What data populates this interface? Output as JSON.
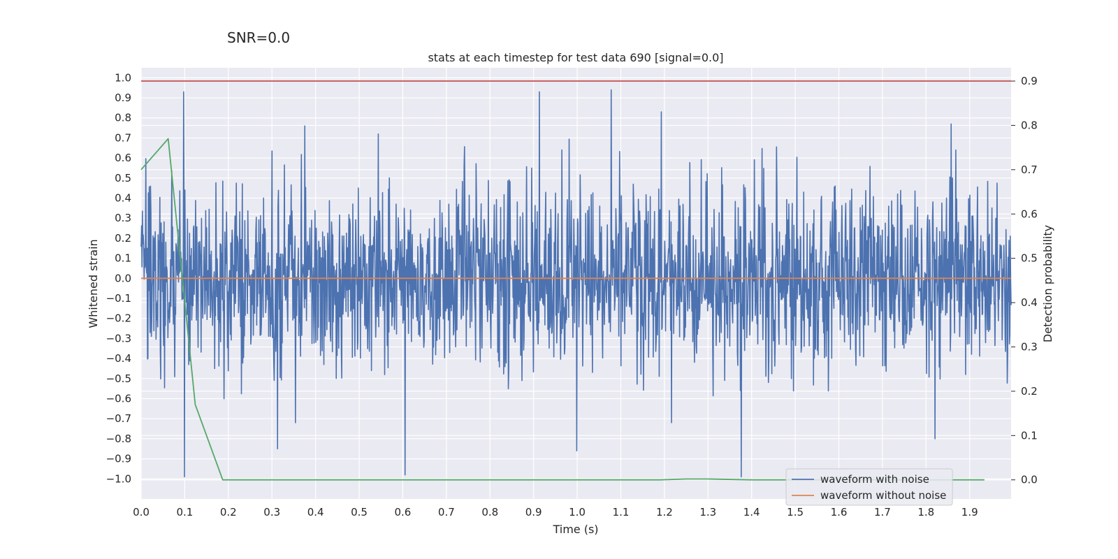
{
  "suptitle": "SNR=0.0",
  "chart_data": {
    "type": "line",
    "title": "stats at each timestep for test data 690 [signal=0.0]",
    "xlabel": "Time (s)",
    "ylabel": "Whitened strain",
    "y2label": "Detection probability",
    "xlim": [
      0.0,
      1.995
    ],
    "ylim": [
      -1.1,
      1.05
    ],
    "y2lim": [
      -0.043,
      0.93
    ],
    "xticks": [
      0.0,
      0.1,
      0.2,
      0.3,
      0.4,
      0.5,
      0.6,
      0.7,
      0.8,
      0.9,
      1.0,
      1.1,
      1.2,
      1.3,
      1.4,
      1.5,
      1.6,
      1.7,
      1.8,
      1.9
    ],
    "xtick_labels": [
      "0.0",
      "0.1",
      "0.2",
      "0.3",
      "0.4",
      "0.5",
      "0.6",
      "0.7",
      "0.8",
      "0.9",
      "1.0",
      "1.1",
      "1.2",
      "1.3",
      "1.4",
      "1.5",
      "1.6",
      "1.7",
      "1.8",
      "1.9"
    ],
    "yticks": [
      1.0,
      0.9,
      0.8,
      0.7,
      0.6,
      0.5,
      0.4,
      0.3,
      0.2,
      0.1,
      0.0,
      -0.1,
      -0.2,
      -0.3,
      -0.4,
      -0.5,
      -0.6,
      -0.7,
      -0.8,
      -0.9,
      -1.0
    ],
    "ytick_labels": [
      "1.0",
      "0.9",
      "0.8",
      "0.7",
      "0.6",
      "0.5",
      "0.4",
      "0.3",
      "0.2",
      "0.1",
      "0.0",
      "−0.1",
      "−0.2",
      "−0.3",
      "−0.4",
      "−0.5",
      "−0.6",
      "−0.7",
      "−0.8",
      "−0.9",
      "−1.0"
    ],
    "y2ticks": [
      0.9,
      0.8,
      0.7,
      0.6,
      0.5,
      0.4,
      0.3,
      0.2,
      0.1,
      0.0
    ],
    "y2tick_labels": [
      "0.9",
      "0.8",
      "0.7",
      "0.6",
      "0.5",
      "0.4",
      "0.3",
      "0.2",
      "0.1",
      "0.0"
    ],
    "grid": true,
    "legend_position": "lower-right",
    "series": [
      {
        "name": "waveform with noise",
        "color": "#4c72b0",
        "axis": "left",
        "generated": "noise",
        "n_points": 2048,
        "x_range": [
          0.0,
          1.995
        ],
        "spikes": [
          {
            "x": 0.097,
            "y": 0.93
          },
          {
            "x": 0.099,
            "y": -0.99
          },
          {
            "x": 0.313,
            "y": -0.85
          },
          {
            "x": 0.375,
            "y": 0.76
          },
          {
            "x": 0.605,
            "y": -0.98
          },
          {
            "x": 0.913,
            "y": 0.93
          },
          {
            "x": 0.999,
            "y": -0.86
          },
          {
            "x": 1.078,
            "y": 0.94
          },
          {
            "x": 1.193,
            "y": 0.83
          },
          {
            "x": 1.376,
            "y": -0.99
          },
          {
            "x": 1.821,
            "y": -0.8
          },
          {
            "x": 1.858,
            "y": 0.77
          }
        ]
      },
      {
        "name": "waveform without noise",
        "color": "#dd8452",
        "axis": "left",
        "x": [
          0.0,
          1.995
        ],
        "y": [
          0.0,
          0.0
        ]
      },
      {
        "name": "detection probability",
        "color": "#55a868",
        "axis": "right",
        "x": [
          0.0,
          0.062,
          0.124,
          0.187,
          0.25,
          0.5,
          0.75,
          1.0,
          1.19,
          1.25,
          1.3,
          1.4,
          1.5,
          1.6,
          1.7,
          1.8,
          1.934
        ],
        "y": [
          0.7,
          0.77,
          0.17,
          0.0,
          0.0,
          0.0,
          0.0,
          0.0,
          0.0,
          0.002,
          0.002,
          0.0,
          0.0,
          0.0,
          0.0,
          0.0,
          0.0
        ]
      },
      {
        "name": "threshold",
        "color": "#c44e52",
        "axis": "right",
        "x": [
          0.0,
          1.995
        ],
        "y": [
          0.9,
          0.9
        ]
      }
    ],
    "legend_entries": [
      {
        "label": "waveform with noise",
        "color": "#4c72b0"
      },
      {
        "label": "waveform without noise",
        "color": "#dd8452"
      }
    ]
  }
}
